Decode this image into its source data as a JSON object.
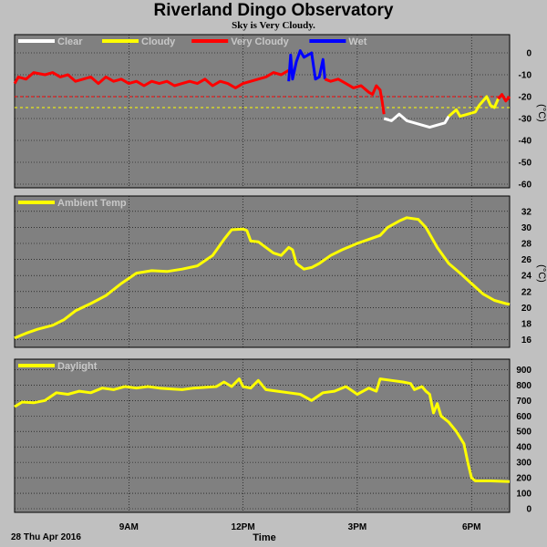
{
  "title": "Riverland Dingo Observatory",
  "subtitle": "Sky is Very Cloudy.",
  "date_label": "28 Thu Apr 2016",
  "xlabel": "Time",
  "colors": {
    "background": "#c0c0c0",
    "plot_bg": "#808080",
    "clear": "#ffffff",
    "cloudy": "#ffff00",
    "very_cloudy": "#ff0000",
    "wet": "#0000ff",
    "series": "#ffff00"
  },
  "chart_data": [
    {
      "type": "line",
      "name": "sky",
      "unit": "(°C)",
      "xlim": [
        6.0,
        19.0
      ],
      "x_ticks": [
        9,
        12,
        15,
        18
      ],
      "x_tick_labels": [
        "9AM",
        "12PM",
        "3PM",
        "6PM"
      ],
      "ylim": [
        -60,
        5
      ],
      "y_ticks": [
        0,
        -10,
        -20,
        -30,
        -40,
        -50,
        -60
      ],
      "thresholds": [
        {
          "value": -20,
          "color": "#ff0000"
        },
        {
          "value": -25,
          "color": "#ffff00"
        }
      ],
      "legend": [
        {
          "label": "Clear",
          "color": "#ffffff"
        },
        {
          "label": "Cloudy",
          "color": "#ffff00"
        },
        {
          "label": "Very Cloudy",
          "color": "#ff0000"
        },
        {
          "label": "Wet",
          "color": "#0000ff"
        }
      ],
      "segments": [
        {
          "color": "#ff0000",
          "points": [
            [
              6.0,
              -14
            ],
            [
              6.1,
              -11
            ],
            [
              6.3,
              -12
            ],
            [
              6.5,
              -9
            ],
            [
              6.8,
              -10
            ],
            [
              7.0,
              -9
            ],
            [
              7.2,
              -11
            ],
            [
              7.4,
              -10
            ],
            [
              7.6,
              -13
            ],
            [
              7.8,
              -12
            ],
            [
              8.0,
              -11
            ],
            [
              8.2,
              -14
            ],
            [
              8.4,
              -11
            ],
            [
              8.6,
              -13
            ],
            [
              8.8,
              -12
            ],
            [
              9.0,
              -14
            ],
            [
              9.2,
              -13
            ],
            [
              9.4,
              -15
            ],
            [
              9.6,
              -13
            ],
            [
              9.8,
              -14
            ],
            [
              10.0,
              -13
            ],
            [
              10.2,
              -15
            ],
            [
              10.4,
              -14
            ],
            [
              10.6,
              -13
            ],
            [
              10.8,
              -14
            ],
            [
              11.0,
              -12
            ],
            [
              11.2,
              -15
            ],
            [
              11.4,
              -13
            ],
            [
              11.6,
              -14
            ],
            [
              11.8,
              -16
            ],
            [
              12.0,
              -14
            ],
            [
              12.2,
              -13
            ],
            [
              12.4,
              -12
            ],
            [
              12.6,
              -11
            ],
            [
              12.8,
              -9
            ],
            [
              13.0,
              -10
            ],
            [
              13.2,
              -8
            ]
          ]
        },
        {
          "color": "#0000ff",
          "points": [
            [
              13.2,
              -13
            ],
            [
              13.25,
              -1
            ],
            [
              13.3,
              -12
            ],
            [
              13.4,
              -4
            ],
            [
              13.5,
              1
            ],
            [
              13.6,
              -2
            ],
            [
              13.7,
              -1
            ],
            [
              13.8,
              0
            ],
            [
              13.9,
              -12
            ],
            [
              14.0,
              -11
            ],
            [
              14.1,
              -3
            ],
            [
              14.15,
              -12
            ]
          ]
        },
        {
          "color": "#ff0000",
          "points": [
            [
              14.15,
              -12
            ],
            [
              14.3,
              -13
            ],
            [
              14.5,
              -12
            ],
            [
              14.7,
              -14
            ],
            [
              14.9,
              -16
            ],
            [
              15.1,
              -15
            ],
            [
              15.3,
              -18
            ],
            [
              15.4,
              -19
            ],
            [
              15.5,
              -15
            ],
            [
              15.6,
              -17
            ],
            [
              15.65,
              -22
            ],
            [
              15.7,
              -28
            ]
          ]
        },
        {
          "color": "#ffffff",
          "points": [
            [
              15.7,
              -30
            ],
            [
              15.9,
              -31
            ],
            [
              16.1,
              -28
            ],
            [
              16.3,
              -31
            ],
            [
              16.5,
              -32
            ],
            [
              16.7,
              -33
            ],
            [
              16.9,
              -34
            ],
            [
              17.1,
              -33
            ],
            [
              17.3,
              -32
            ],
            [
              17.4,
              -29
            ]
          ]
        },
        {
          "color": "#ffff00",
          "points": [
            [
              17.4,
              -29
            ],
            [
              17.6,
              -26
            ],
            [
              17.7,
              -29
            ],
            [
              17.9,
              -28
            ],
            [
              18.1,
              -27
            ],
            [
              18.2,
              -24
            ],
            [
              18.4,
              -20
            ],
            [
              18.5,
              -24
            ],
            [
              18.6,
              -25
            ],
            [
              18.7,
              -21
            ]
          ]
        },
        {
          "color": "#ff0000",
          "points": [
            [
              18.7,
              -21
            ],
            [
              18.8,
              -19
            ],
            [
              18.9,
              -22
            ],
            [
              19.0,
              -20
            ]
          ]
        }
      ]
    },
    {
      "type": "line",
      "name": "ambient",
      "unit": "(°C)",
      "xlim": [
        6.0,
        19.0
      ],
      "x_ticks": [
        9,
        12,
        15,
        18
      ],
      "x_tick_labels": [
        "9AM",
        "12PM",
        "3PM",
        "6PM"
      ],
      "ylim": [
        15.5,
        33
      ],
      "y_ticks": [
        16,
        18,
        20,
        22,
        24,
        26,
        28,
        30,
        32
      ],
      "legend": [
        {
          "label": "Ambient Temp",
          "color": "#ffff00"
        }
      ],
      "segments": [
        {
          "color": "#ffff00",
          "points": [
            [
              6.0,
              16.2
            ],
            [
              6.3,
              16.8
            ],
            [
              6.6,
              17.3
            ],
            [
              7.0,
              17.8
            ],
            [
              7.3,
              18.5
            ],
            [
              7.6,
              19.6
            ],
            [
              8.0,
              20.5
            ],
            [
              8.4,
              21.5
            ],
            [
              8.8,
              23.0
            ],
            [
              9.2,
              24.3
            ],
            [
              9.6,
              24.6
            ],
            [
              10.0,
              24.5
            ],
            [
              10.4,
              24.8
            ],
            [
              10.8,
              25.2
            ],
            [
              11.2,
              26.5
            ],
            [
              11.5,
              28.5
            ],
            [
              11.7,
              29.7
            ],
            [
              12.0,
              29.8
            ],
            [
              12.1,
              29.6
            ],
            [
              12.2,
              28.3
            ],
            [
              12.4,
              28.2
            ],
            [
              12.6,
              27.5
            ],
            [
              12.8,
              26.8
            ],
            [
              13.0,
              26.5
            ],
            [
              13.2,
              27.5
            ],
            [
              13.3,
              27.2
            ],
            [
              13.4,
              25.5
            ],
            [
              13.6,
              24.8
            ],
            [
              13.8,
              25.0
            ],
            [
              14.0,
              25.5
            ],
            [
              14.3,
              26.5
            ],
            [
              14.6,
              27.2
            ],
            [
              15.0,
              28.0
            ],
            [
              15.3,
              28.5
            ],
            [
              15.6,
              29.0
            ],
            [
              15.8,
              30.0
            ],
            [
              16.1,
              30.8
            ],
            [
              16.3,
              31.2
            ],
            [
              16.6,
              31.0
            ],
            [
              16.8,
              30.0
            ],
            [
              17.1,
              27.5
            ],
            [
              17.4,
              25.5
            ],
            [
              17.7,
              24.3
            ],
            [
              18.0,
              23.0
            ],
            [
              18.3,
              21.7
            ],
            [
              18.6,
              20.9
            ],
            [
              18.9,
              20.5
            ],
            [
              19.0,
              20.4
            ]
          ]
        }
      ]
    },
    {
      "type": "line",
      "name": "daylight",
      "unit": "",
      "xlim": [
        6.0,
        19.0
      ],
      "x_ticks": [
        9,
        12,
        15,
        18
      ],
      "x_tick_labels": [
        "9AM",
        "12PM",
        "3PM",
        "6PM"
      ],
      "ylim": [
        0,
        920
      ],
      "y_ticks": [
        0,
        100,
        200,
        300,
        400,
        500,
        600,
        700,
        800,
        900
      ],
      "legend": [
        {
          "label": "Daylight",
          "color": "#ffff00"
        }
      ],
      "segments": [
        {
          "color": "#ffff00",
          "points": [
            [
              6.0,
              660
            ],
            [
              6.2,
              690
            ],
            [
              6.5,
              685
            ],
            [
              6.8,
              700
            ],
            [
              7.1,
              750
            ],
            [
              7.4,
              740
            ],
            [
              7.7,
              760
            ],
            [
              8.0,
              750
            ],
            [
              8.3,
              780
            ],
            [
              8.6,
              770
            ],
            [
              8.9,
              790
            ],
            [
              9.2,
              780
            ],
            [
              9.5,
              790
            ],
            [
              9.8,
              780
            ],
            [
              10.1,
              775
            ],
            [
              10.4,
              770
            ],
            [
              10.7,
              780
            ],
            [
              11.0,
              785
            ],
            [
              11.3,
              790
            ],
            [
              11.5,
              820
            ],
            [
              11.7,
              790
            ],
            [
              11.9,
              840
            ],
            [
              12.0,
              790
            ],
            [
              12.2,
              780
            ],
            [
              12.4,
              830
            ],
            [
              12.6,
              770
            ],
            [
              12.9,
              760
            ],
            [
              13.2,
              750
            ],
            [
              13.5,
              740
            ],
            [
              13.8,
              700
            ],
            [
              14.1,
              750
            ],
            [
              14.4,
              760
            ],
            [
              14.7,
              790
            ],
            [
              15.0,
              740
            ],
            [
              15.3,
              780
            ],
            [
              15.5,
              760
            ],
            [
              15.6,
              840
            ],
            [
              15.9,
              830
            ],
            [
              16.2,
              820
            ],
            [
              16.4,
              810
            ],
            [
              16.5,
              770
            ],
            [
              16.7,
              790
            ],
            [
              16.8,
              760
            ],
            [
              16.9,
              740
            ],
            [
              17.0,
              620
            ],
            [
              17.1,
              680
            ],
            [
              17.2,
              600
            ],
            [
              17.4,
              560
            ],
            [
              17.6,
              500
            ],
            [
              17.8,
              420
            ],
            [
              17.9,
              300
            ],
            [
              18.0,
              200
            ],
            [
              18.1,
              180
            ],
            [
              18.5,
              180
            ],
            [
              19.0,
              175
            ]
          ]
        }
      ]
    }
  ]
}
